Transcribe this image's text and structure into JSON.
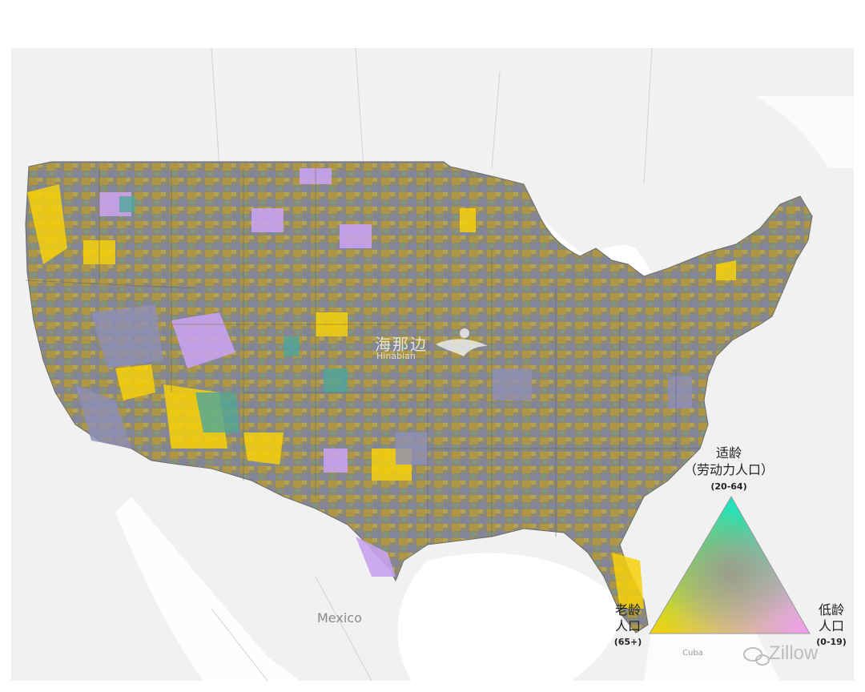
{
  "map": {
    "place_labels": {
      "mexico": "Mexico",
      "cuba": "Cuba"
    },
    "colors": {
      "land": "#f1f1f1",
      "water": "#ffffff",
      "borders": "#d2d2d2",
      "working_age": "#19e3c2",
      "elderly": "#f7d10a",
      "young": "#f39cf0",
      "mixed": "#8d8972"
    }
  },
  "legend": {
    "top_label": "适龄",
    "top_sub": "（劳动力人口）",
    "top_range": "(20-64)",
    "left_label_1": "老龄",
    "left_label_2": "人口",
    "left_range": "(65+)",
    "right_label_1": "低龄",
    "right_label_2": "人口",
    "right_range": "(0-19)"
  },
  "watermark": {
    "name": "海那边",
    "sub": "Hinabian"
  },
  "credit": {
    "source": "Zillow",
    "icon": "wechat-icon"
  }
}
